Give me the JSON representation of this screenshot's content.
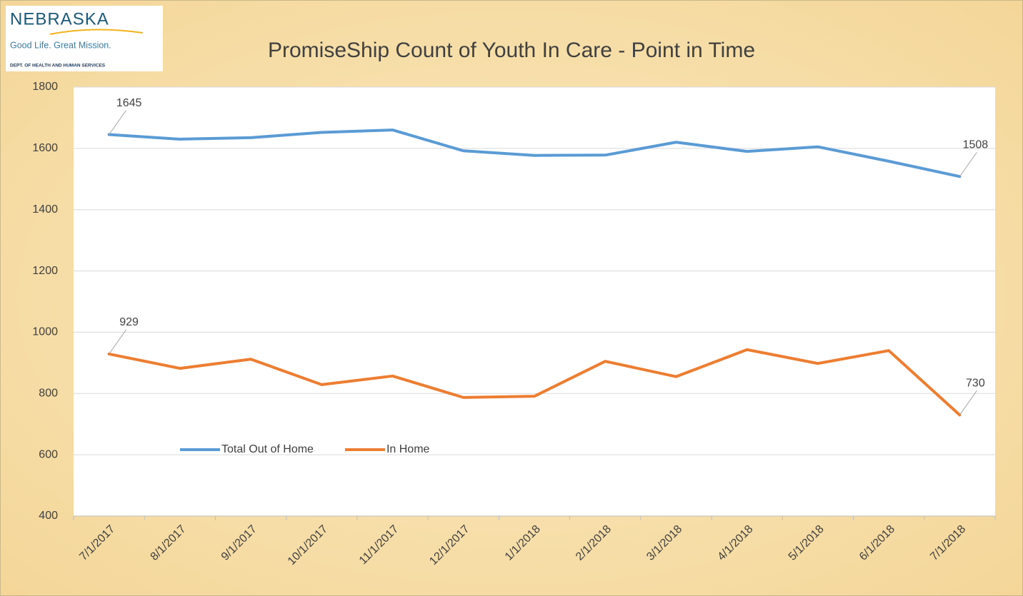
{
  "logo": {
    "name": "NEBRASKA",
    "tagline": "Good Life. Great Mission.",
    "department": "DEPT. OF HEALTH AND HUMAN SERVICES"
  },
  "chart_data": {
    "type": "line",
    "title": "PromiseShip Count of Youth In Care - Point in Time",
    "categories": [
      "7/1/2017",
      "8/1/2017",
      "9/1/2017",
      "10/1/2017",
      "11/1/2017",
      "12/1/2017",
      "1/1/2018",
      "2/1/2018",
      "3/1/2018",
      "4/1/2018",
      "5/1/2018",
      "6/1/2018",
      "7/1/2018"
    ],
    "series": [
      {
        "name": "Total Out of Home",
        "color": "#5b9bd5",
        "values": [
          1645,
          1630,
          1635,
          1652,
          1660,
          1592,
          1577,
          1578,
          1620,
          1590,
          1605,
          1558,
          1508
        ]
      },
      {
        "name": "In Home",
        "color": "#ed7d31",
        "values": [
          929,
          882,
          912,
          829,
          857,
          787,
          791,
          905,
          855,
          943,
          898,
          940,
          730
        ]
      }
    ],
    "ylim": [
      400,
      1800
    ],
    "yticks": [
      400,
      600,
      800,
      1000,
      1200,
      1400,
      1600,
      1800
    ],
    "grid": true,
    "legend": "lower left"
  }
}
